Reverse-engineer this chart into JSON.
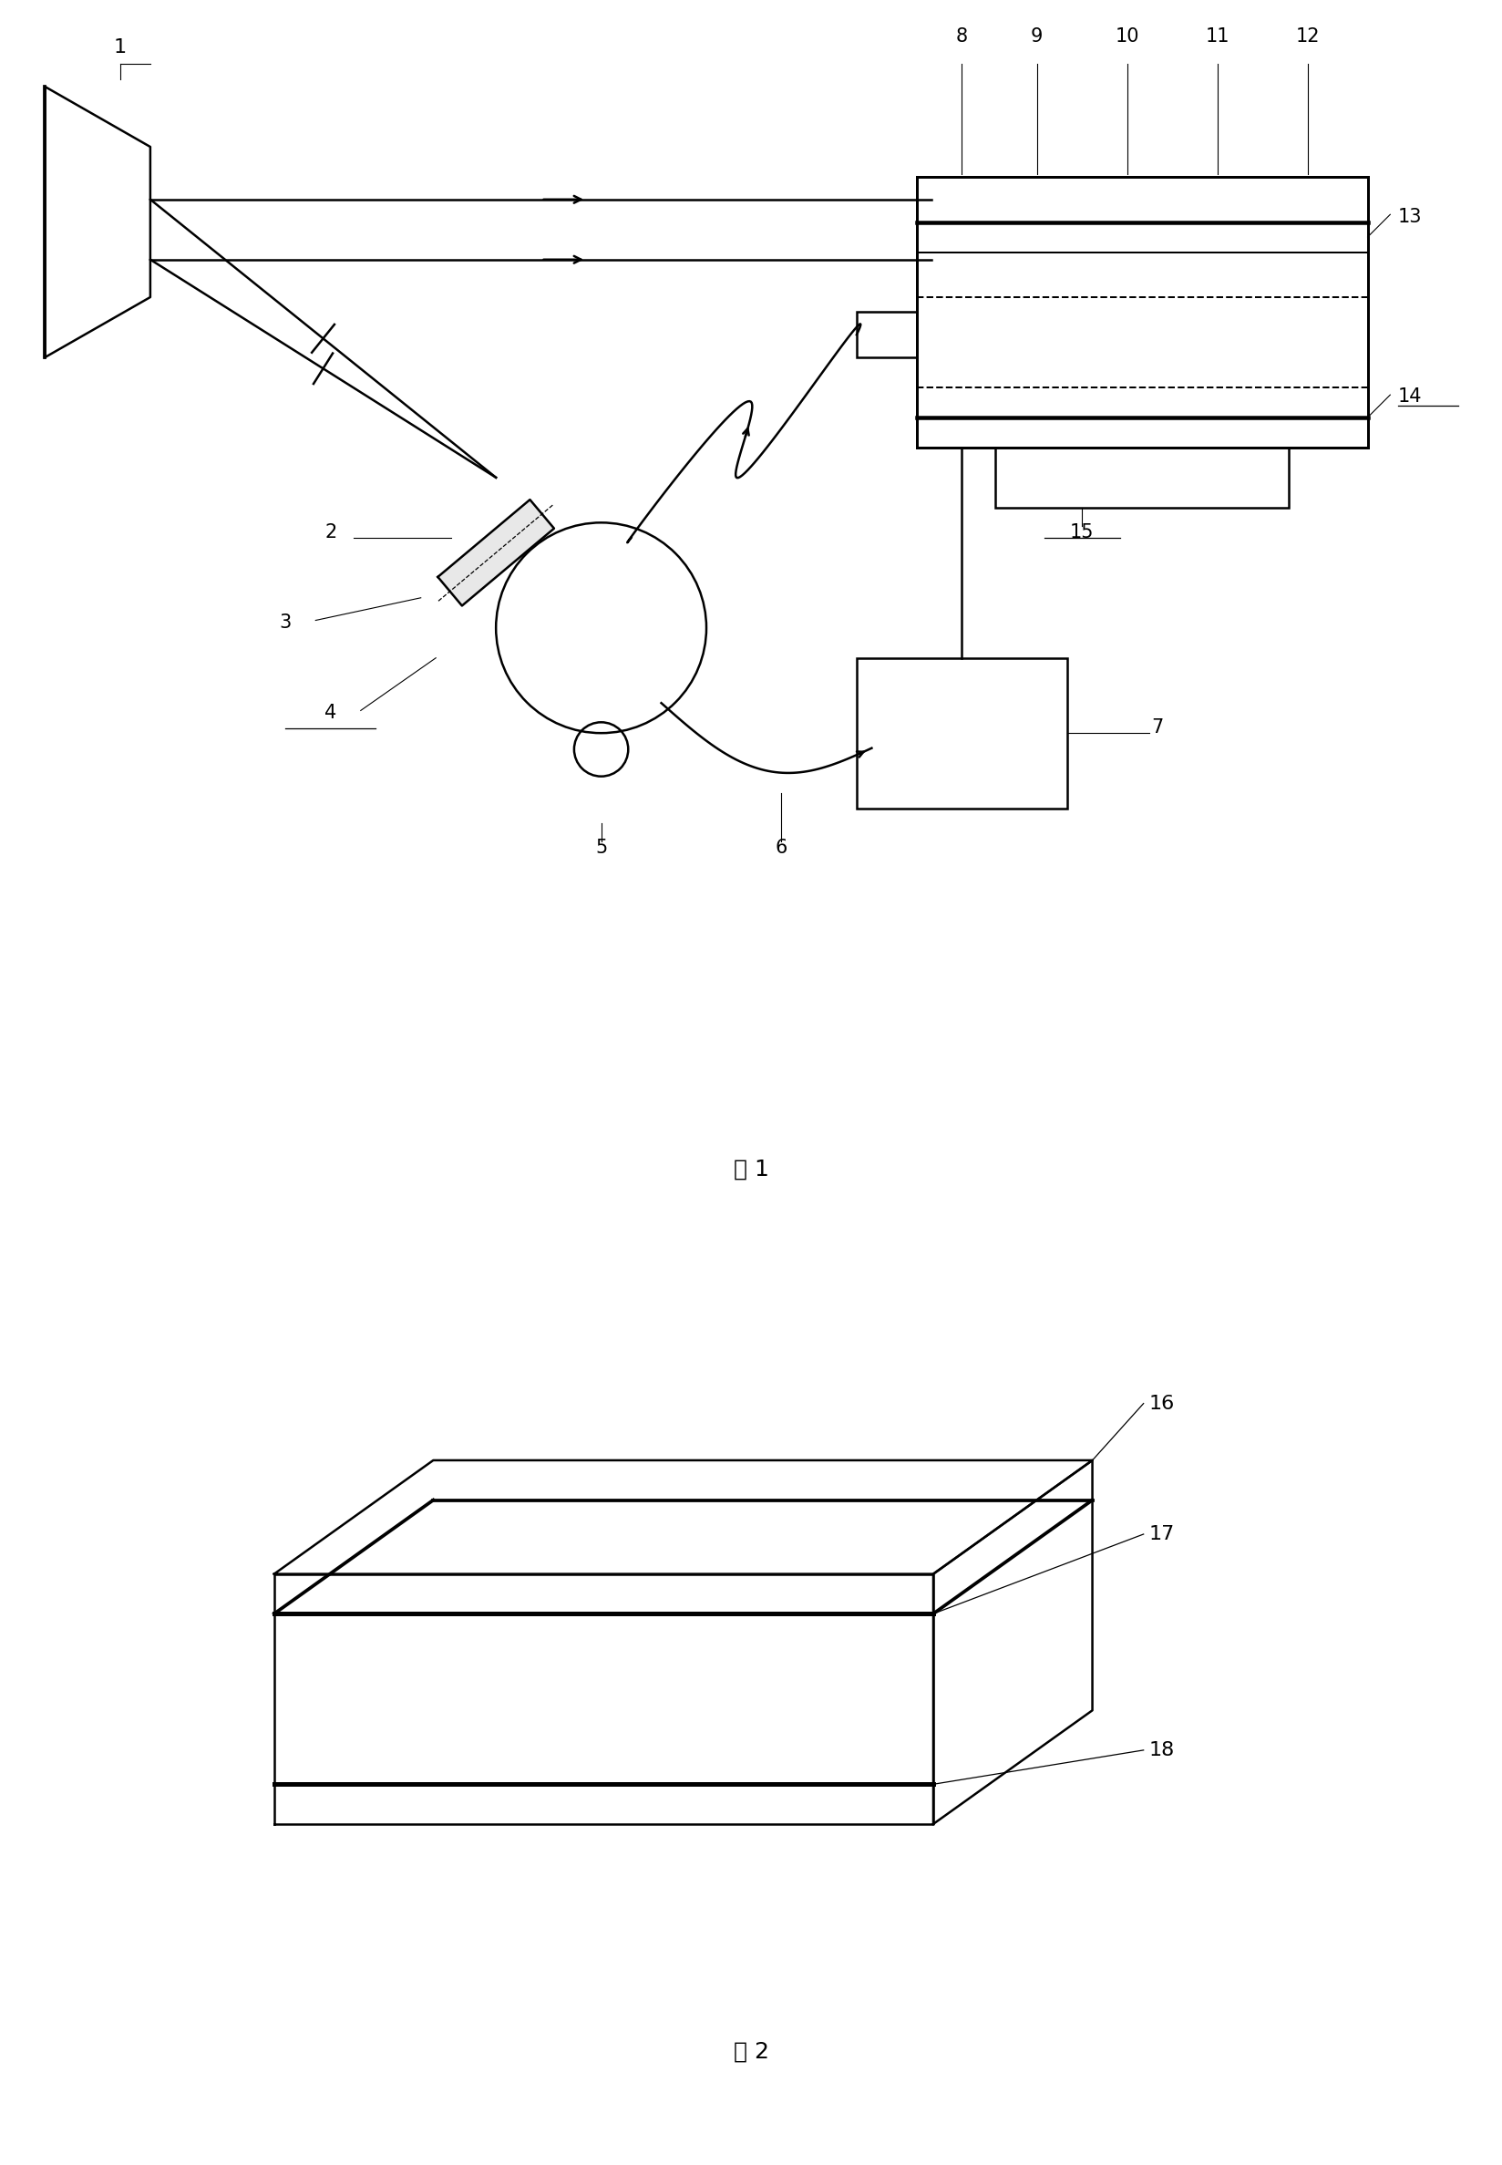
{
  "fig_width": 16.49,
  "fig_height": 23.75,
  "bg_color": "#ffffff",
  "line_color": "#000000",
  "label_fontsize": 14,
  "caption_fontsize": 16,
  "fig1_caption": "图 1",
  "fig2_caption": "图 2"
}
